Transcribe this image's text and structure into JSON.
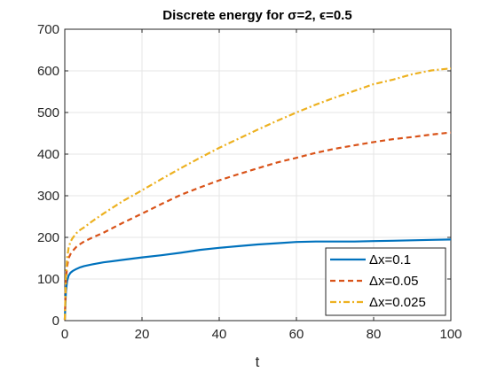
{
  "chart_data": {
    "type": "line",
    "title": "Discrete energy for σ=2, ϵ=0.5",
    "xlabel": "t",
    "ylabel": "",
    "xlim": [
      0,
      100
    ],
    "ylim": [
      0,
      700
    ],
    "xticks": [
      0,
      20,
      40,
      60,
      80,
      100
    ],
    "yticks": [
      0,
      100,
      200,
      300,
      400,
      500,
      600,
      700
    ],
    "grid": true,
    "legend_position": "bottom-right",
    "series": [
      {
        "name": "Δx=0.1",
        "color": "#0072BD",
        "style": "solid",
        "x": [
          0,
          0.3,
          0.6,
          1,
          1.5,
          2,
          3,
          4,
          5,
          7,
          10,
          15,
          20,
          25,
          30,
          35,
          40,
          45,
          50,
          55,
          60,
          65,
          70,
          75,
          80,
          85,
          90,
          95,
          100
        ],
        "y": [
          2,
          70,
          95,
          108,
          115,
          119,
          124,
          128,
          131,
          135,
          140,
          146,
          152,
          157,
          163,
          170,
          175,
          179,
          183,
          186,
          189,
          190,
          190,
          190,
          191,
          192,
          193,
          194,
          195
        ]
      },
      {
        "name": "Δx=0.05",
        "color": "#D95319",
        "style": "dashed",
        "x": [
          0,
          0.3,
          0.6,
          1,
          1.5,
          2,
          3,
          4,
          5,
          7,
          10,
          15,
          20,
          25,
          30,
          35,
          40,
          45,
          50,
          55,
          60,
          65,
          70,
          75,
          80,
          85,
          90,
          95,
          100
        ],
        "y": [
          2,
          95,
          130,
          150,
          160,
          167,
          177,
          184,
          190,
          199,
          211,
          235,
          257,
          280,
          302,
          320,
          337,
          352,
          366,
          380,
          391,
          403,
          413,
          421,
          429,
          436,
          441,
          447,
          452
        ]
      },
      {
        "name": "Δx=0.025",
        "color": "#EDB120",
        "style": "dashdot",
        "x": [
          0,
          0.3,
          0.6,
          1,
          1.5,
          2,
          3,
          4,
          5,
          7,
          10,
          15,
          20,
          25,
          30,
          35,
          40,
          45,
          50,
          55,
          60,
          65,
          70,
          75,
          80,
          85,
          90,
          95,
          100
        ],
        "y": [
          2,
          110,
          150,
          175,
          190,
          198,
          210,
          218,
          224,
          238,
          257,
          287,
          313,
          340,
          366,
          391,
          415,
          437,
          459,
          480,
          500,
          519,
          536,
          552,
          568,
          579,
          592,
          601,
          606
        ]
      }
    ]
  }
}
